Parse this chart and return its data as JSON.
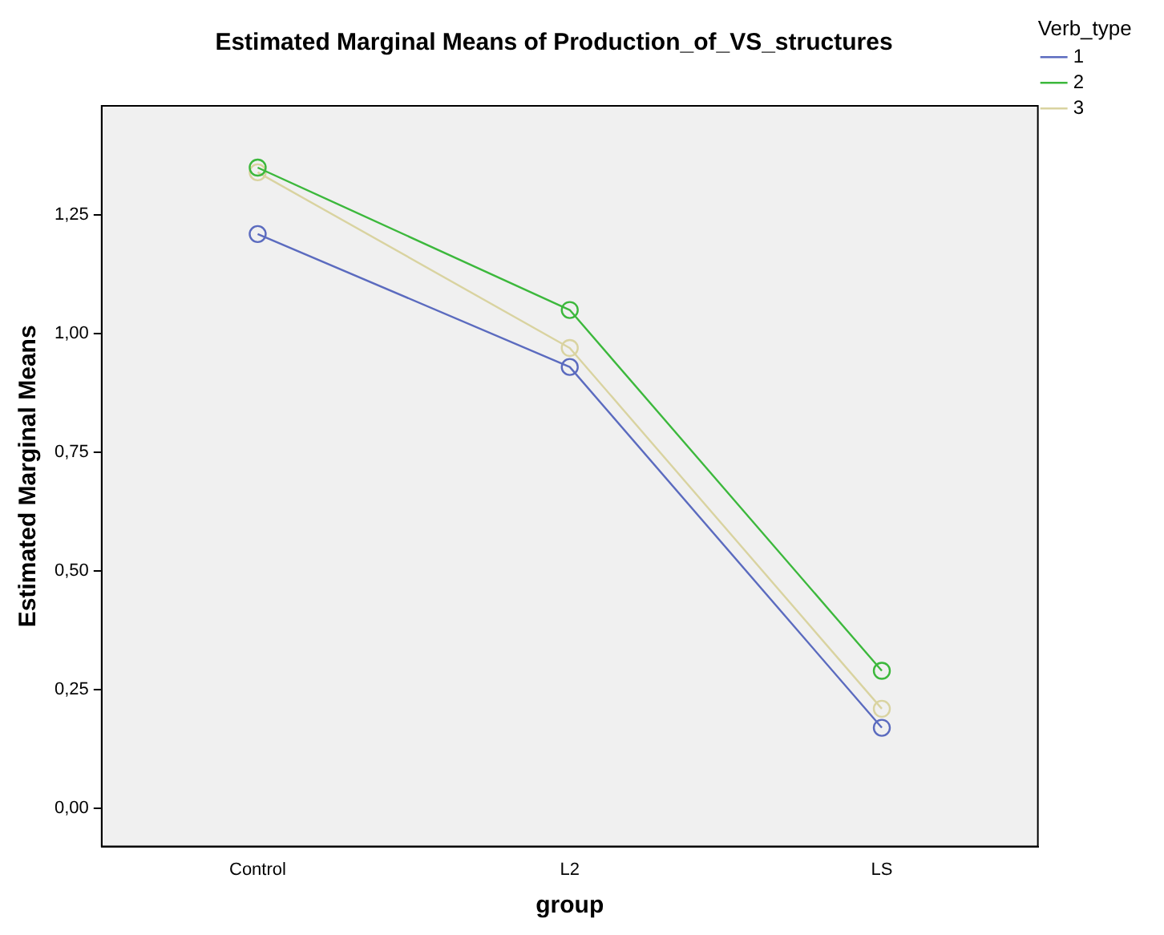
{
  "chart_data": {
    "type": "line",
    "title": "Estimated Marginal Means of Production_of_VS_structures",
    "xlabel": "group",
    "ylabel": "Estimated Marginal Means",
    "legend_title": "Verb_type",
    "legend": "top right",
    "marker": "circle",
    "line_style": "solid",
    "grid": false,
    "categories": [
      "Control",
      "L2",
      "LS"
    ],
    "ylim": [
      -0.08,
      1.48
    ],
    "yticks": [
      {
        "value": 0,
        "label": "0,00"
      },
      {
        "value": 0.25,
        "label": "0,25"
      },
      {
        "value": 0.5,
        "label": "0,50"
      },
      {
        "value": 0.75,
        "label": "0,75"
      },
      {
        "value": 1,
        "label": "1,00"
      },
      {
        "value": 1.25,
        "label": "1,25"
      }
    ],
    "series": [
      {
        "name": "1",
        "color": "#5b6bbf",
        "values": [
          1.21,
          0.93,
          0.17
        ]
      },
      {
        "name": "2",
        "color": "#3cb83c",
        "values": [
          1.35,
          1.05,
          0.29
        ]
      },
      {
        "name": "3",
        "color": "#d9d3a0",
        "values": [
          1.34,
          0.97,
          0.21
        ]
      }
    ]
  }
}
